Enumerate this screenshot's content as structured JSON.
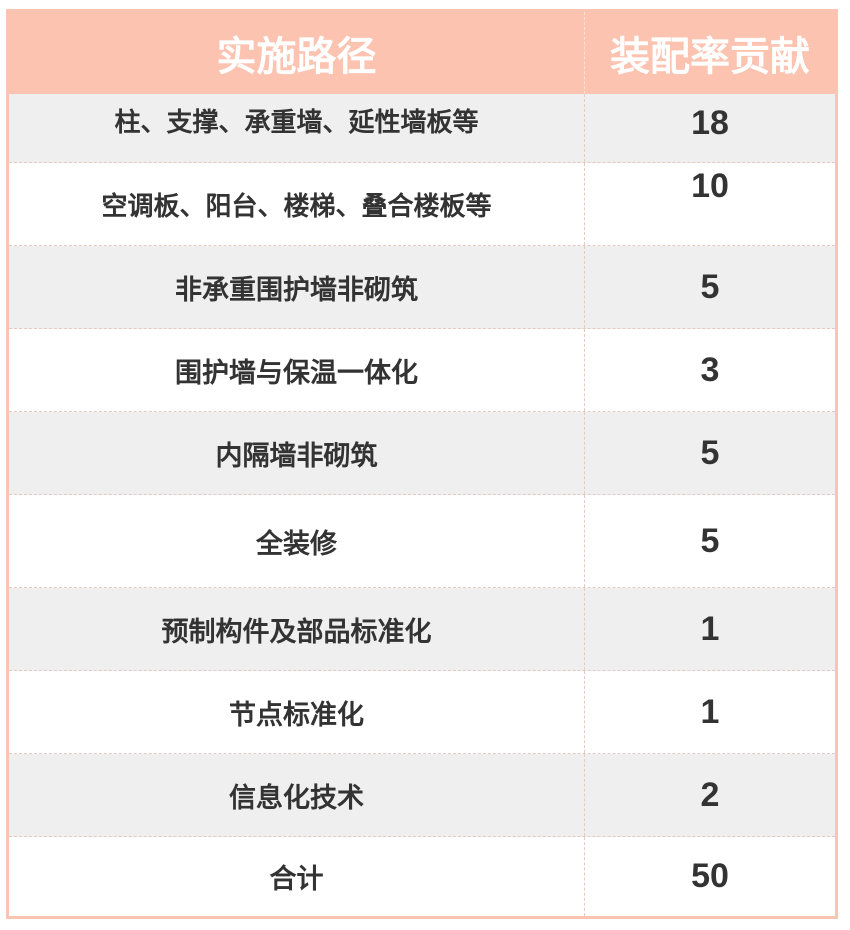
{
  "header": {
    "path": "实施路径",
    "contribution": "装配率贡献"
  },
  "rows": [
    {
      "path": "柱、支撑、承重墙、延性墙板等",
      "value": "18"
    },
    {
      "path": "空调板、阳台、楼梯、叠合楼板等",
      "value": "10"
    },
    {
      "path": "非承重围护墙非砌筑",
      "value": "5"
    },
    {
      "path": "围护墙与保温一体化",
      "value": "3"
    },
    {
      "path": "内隔墙非砌筑",
      "value": "5"
    },
    {
      "path": "全装修",
      "value": "5"
    },
    {
      "path": "预制构件及部品标准化",
      "value": "1"
    },
    {
      "path": "节点标准化",
      "value": "1"
    },
    {
      "path": "信息化技术",
      "value": "2"
    },
    {
      "path": "合计",
      "value": "50"
    }
  ],
  "colors": {
    "header": "#fbc3b0",
    "stripe": "#efefef",
    "text": "#333333"
  }
}
